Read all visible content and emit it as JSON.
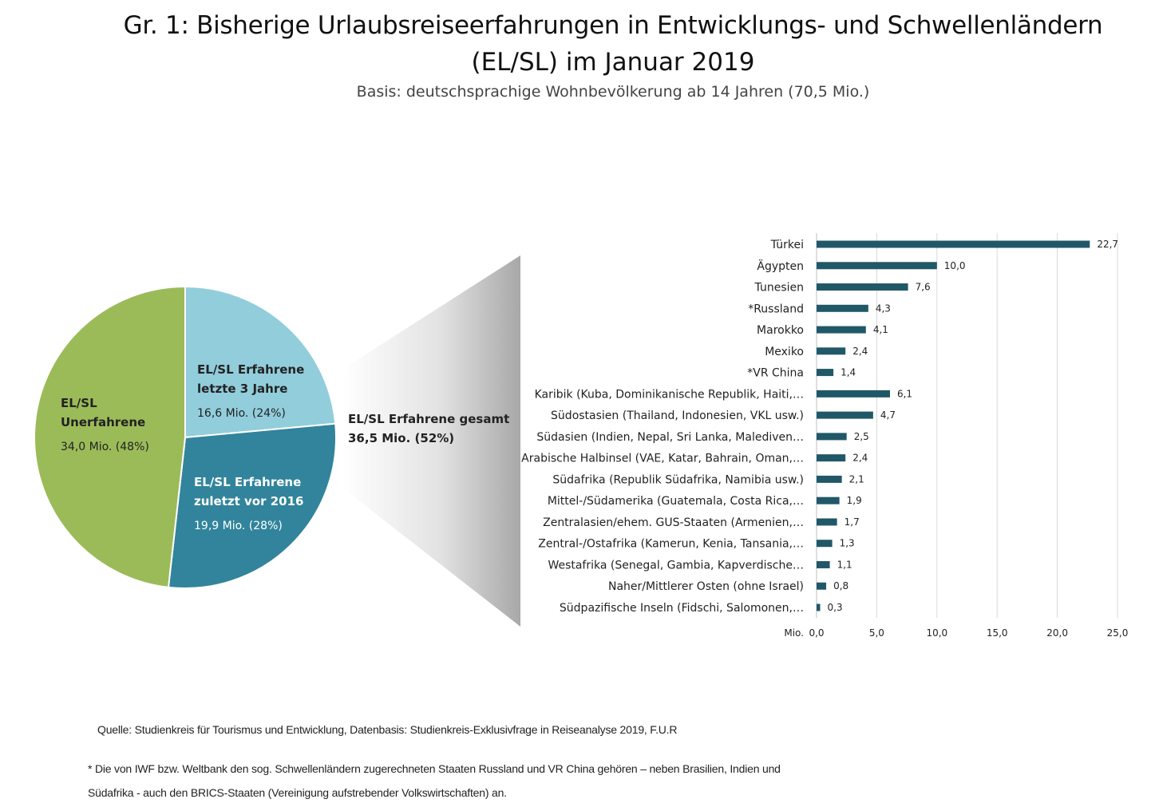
{
  "title_line1": "Gr. 1: Bisherige Urlaubsreiseerfahrungen in Entwicklungs- und Schwellenländern",
  "title_line2": "(EL/SL) im Januar 2019",
  "subtitle": "Basis: deutschsprachige Wohnbevölkerung ab 14 Jahren (70,5 Mio.)",
  "chart_data": [
    {
      "type": "pie",
      "slices": [
        {
          "label_line1": "EL/SL Erfahrene",
          "label_line2": "letzte 3 Jahre",
          "value_label": "16,6 Mio. (24%)",
          "value": 16.6,
          "percent": 24,
          "color": "#92cddc"
        },
        {
          "label_line1": "EL/SL Erfahrene",
          "label_line2": "zuletzt vor 2016",
          "value_label": "19,9 Mio. (28%)",
          "value": 19.9,
          "percent": 28,
          "color": "#31849b"
        },
        {
          "label_line1": "EL/SL",
          "label_line2": "Unerfahrene",
          "value_label": "34,0 Mio. (48%)",
          "value": 34.0,
          "percent": 48,
          "color": "#9bbb59"
        }
      ],
      "callout_line1": "EL/SL Erfahrene gesamt",
      "callout_line2": "36,5 Mio. (52%)"
    },
    {
      "type": "bar",
      "orientation": "horizontal",
      "bar_color": "#215868",
      "categories": [
        "Türkei",
        "Ägypten",
        "Tunesien",
        "*Russland",
        "Marokko",
        "Mexiko",
        "*VR China",
        "Karibik (Kuba, Dominikanische Republik, Haiti,…",
        "Südostasien (Thailand, Indonesien, VKL usw.)",
        "Südasien (Indien, Nepal, Sri Lanka, Malediven…",
        "Arabische Halbinsel (VAE, Katar, Bahrain, Oman,…",
        "Südafrika (Republik Südafrika, Namibia usw.)",
        "Mittel-/Südamerika (Guatemala, Costa Rica,…",
        "Zentralasien/ehem. GUS-Staaten (Armenien,…",
        "Zentral-/Ostafrika (Kamerun, Kenia, Tansania,…",
        "Westafrika (Senegal, Gambia, Kapverdische…",
        "Naher/Mittlerer Osten (ohne Israel)",
        "Südpazifische Inseln (Fidschi, Salomonen,…"
      ],
      "values": [
        22.7,
        10.0,
        7.6,
        4.3,
        4.1,
        2.4,
        1.4,
        6.1,
        4.7,
        2.5,
        2.4,
        2.1,
        1.9,
        1.7,
        1.3,
        1.1,
        0.8,
        0.3
      ],
      "value_labels": [
        "22,7",
        "10,0",
        "7,6",
        "4,3",
        "4,1",
        "2,4",
        "1,4",
        "6,1",
        "4,7",
        "2,5",
        "2,4",
        "2,1",
        "1,9",
        "1,7",
        "1,3",
        "1,1",
        "0,8",
        "0,3"
      ],
      "xlim": [
        0,
        25
      ],
      "xticks": [
        0,
        5,
        10,
        15,
        20,
        25
      ],
      "xtick_labels": [
        "0,0",
        "5,0",
        "10,0",
        "15,0",
        "20,0",
        "25,0"
      ],
      "xunit_label": "Mio.",
      "grid": true
    }
  ],
  "source": "Quelle: Studienkreis für Tourismus und Entwicklung, Datenbasis: Studienkreis-Exklusivfrage in Reiseanalyse 2019, F.U.R",
  "footnote_line1": "* Die von IWF bzw. Weltbank den sog. Schwellenländern zugerechneten Staaten Russland und VR China gehören – neben Brasilien, Indien und",
  "footnote_line2": "Südafrika - auch den BRICS-Staaten (Vereinigung aufstrebender Volkswirtschaften) an."
}
